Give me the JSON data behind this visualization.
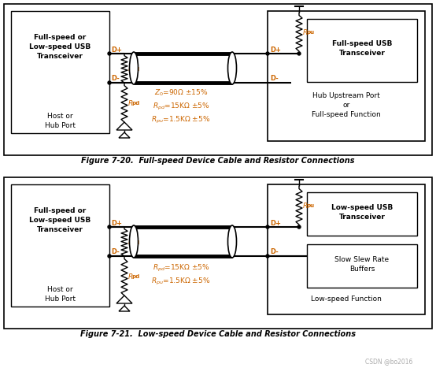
{
  "bg_color": "#ffffff",
  "fig_width": 5.54,
  "fig_height": 4.67,
  "dpi": 100,
  "caption1": "Figure 7-20.  Full-speed Device Cable and Resistor Connections",
  "caption2": "Figure 7-21.  Low-speed Device Cable and Resistor Connections",
  "watermark": "CSDN @bo2016",
  "text_color": "#333333",
  "label_color": "#cc6600"
}
